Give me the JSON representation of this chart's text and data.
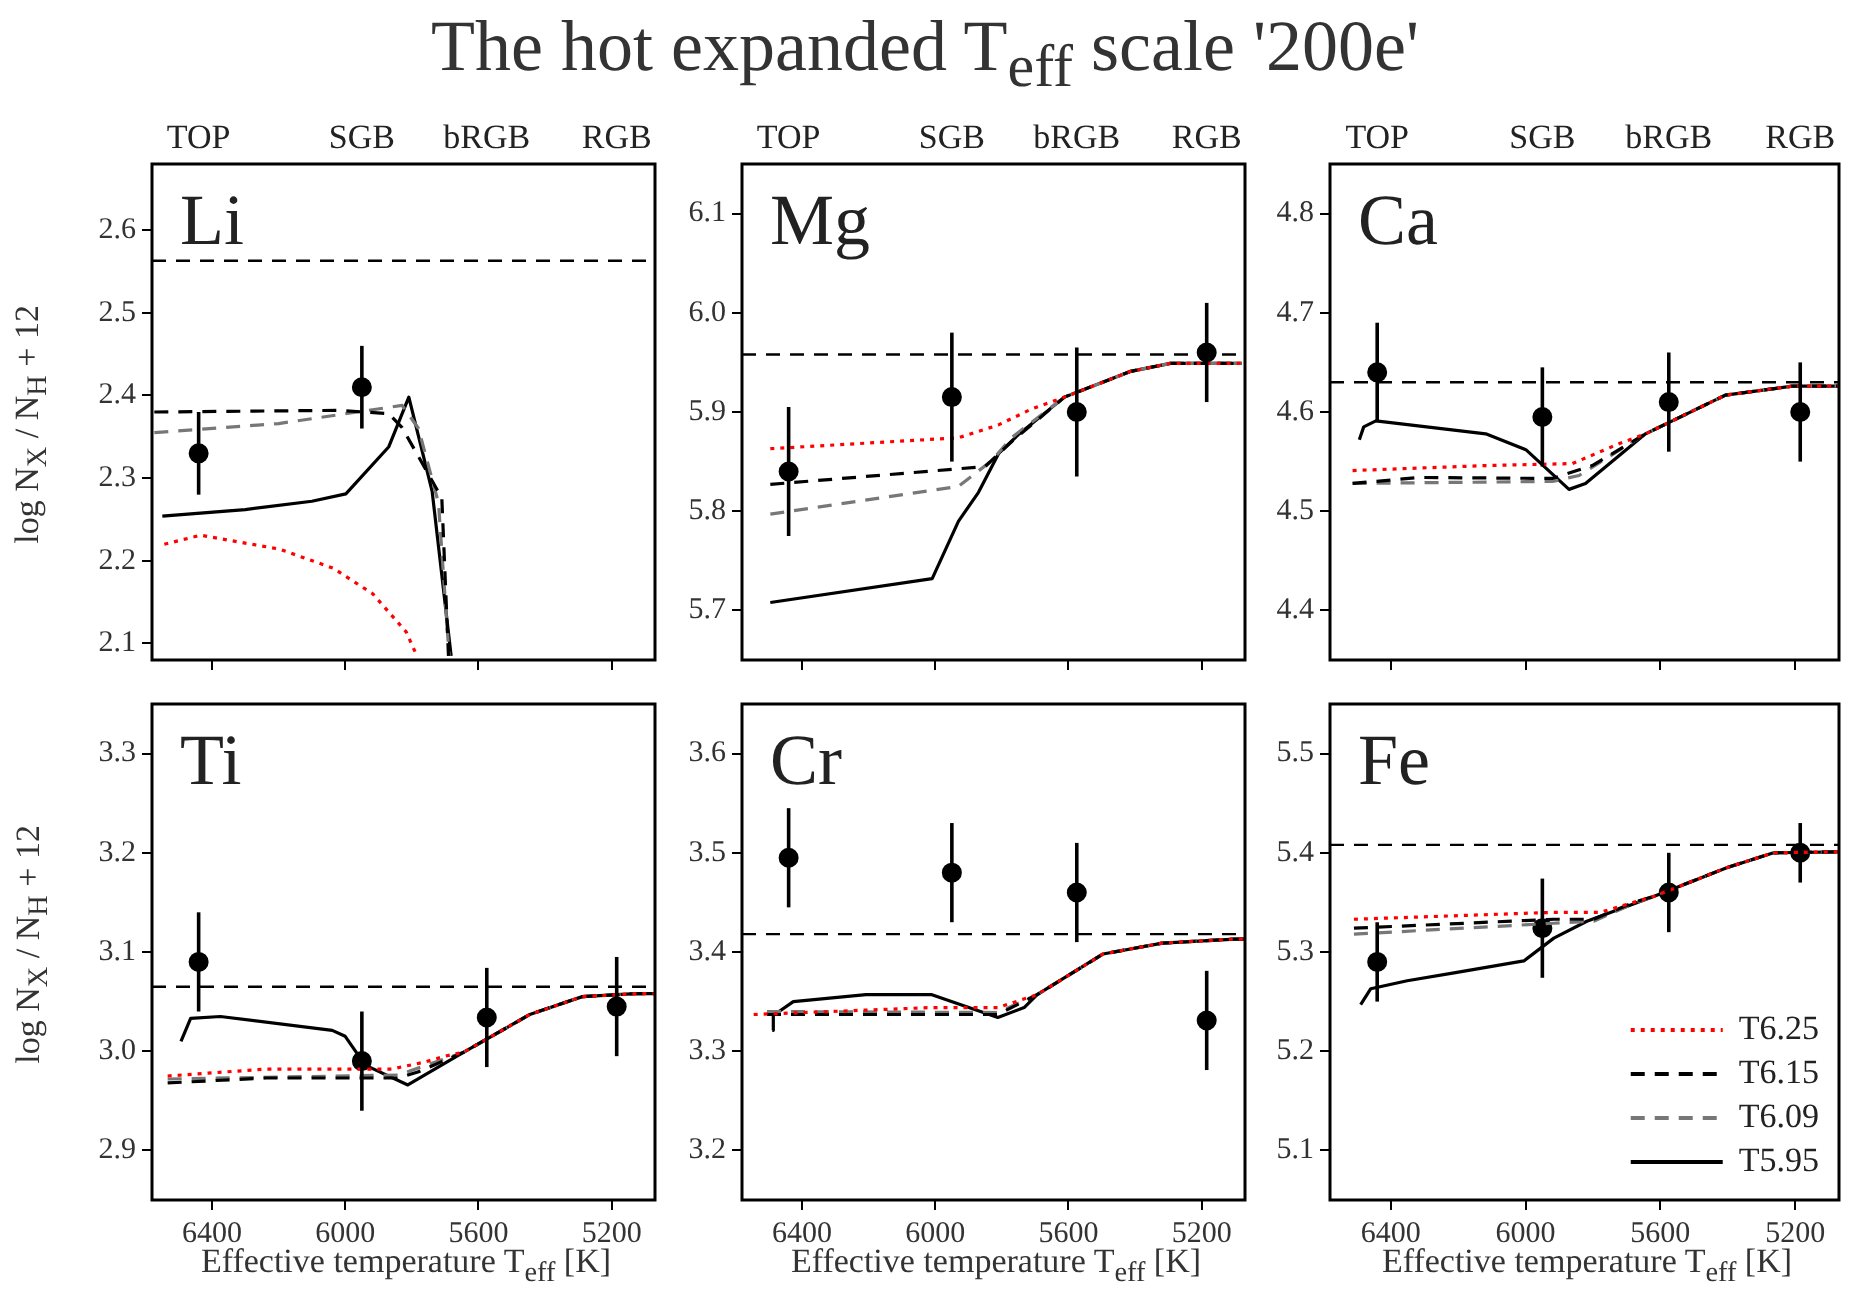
{
  "chart_data": [
    {
      "type": "line",
      "title": "The hot expanded T$_{eff}$ scale '200e'",
      "annotations": [
        "Li",
        "TOP",
        "SGB",
        "bRGB",
        "RGB"
      ],
      "ylabel": "log N$_{X}$ / N$_{H}$ + 12",
      "xlim": [
        6580,
        5070
      ],
      "xticks": [
        6400,
        6000,
        5600,
        5200
      ],
      "tick_labels": "y",
      "ylim": [
        2.08,
        2.68
      ],
      "yticks": [
        2.1,
        2.2,
        2.3,
        2.4,
        2.5,
        2.6
      ],
      "ref_lines": [
        {
          "axis": "y",
          "value": 2.563,
          "color": "#000000",
          "line_style": "dashed"
        }
      ],
      "series": [
        {
          "type": "line",
          "color": "#ff0000",
          "line_style": "dotted",
          "marker": "none",
          "x": [
            6543,
            6434,
            6196,
            6036,
            5917,
            5817,
            5787
          ],
          "values": [
            2.22,
            2.231,
            2.214,
            2.191,
            2.16,
            2.114,
            2.087
          ]
        },
        {
          "type": "line",
          "color": "#000000",
          "line_style": "dashed",
          "marker": "none",
          "x": [
            6573,
            6017,
            5869,
            5829,
            5710,
            5690
          ],
          "values": [
            2.38,
            2.382,
            2.378,
            2.361,
            2.276,
            2.085
          ]
        },
        {
          "type": "line",
          "color": "#777777",
          "line_style": "dashed",
          "marker": "none",
          "x": [
            6573,
            6200,
            5829,
            5780,
            5720,
            5688
          ],
          "values": [
            2.355,
            2.366,
            2.388,
            2.36,
            2.27,
            2.085
          ]
        },
        {
          "type": "line",
          "color": "#000000",
          "line_style": "solid",
          "marker": "none",
          "x": [
            6549,
            6300,
            6100,
            5998,
            5869,
            5809,
            5739,
            5682
          ],
          "values": [
            2.254,
            2.262,
            2.272,
            2.281,
            2.338,
            2.398,
            2.284,
            2.085
          ]
        },
        {
          "type": "scatter",
          "color": "#000000",
          "marker": "circle",
          "x": [
            6440,
            5950
          ],
          "values": [
            2.33,
            2.41
          ],
          "errors": [
            0.05,
            0.05
          ]
        }
      ]
    },
    {
      "type": "line",
      "annotations": [
        "Mg",
        "TOP",
        "SGB",
        "bRGB",
        "RGB"
      ],
      "xlim": [
        6580,
        5070
      ],
      "xticks": [
        6400,
        6000,
        5600,
        5200
      ],
      "tick_labels": "y",
      "ylim": [
        5.65,
        6.15
      ],
      "yticks": [
        5.7,
        5.8,
        5.9,
        {
          "value": 6,
          "label": "6.0"
        },
        6.1
      ],
      "ref_lines": [
        {
          "axis": "y",
          "value": 5.958,
          "color": "#000000",
          "line_style": "dashed"
        }
      ],
      "series": [
        {
          "type": "line",
          "color": "#ff0000",
          "line_style": "dotted",
          "marker": "none",
          "x": [
            6495,
            5930,
            5810,
            5711,
            5612,
            5413,
            5294,
            5080
          ],
          "values": [
            5.863,
            5.874,
            5.887,
            5.903,
            5.915,
            5.941,
            5.949,
            5.949
          ]
        },
        {
          "type": "line",
          "color": "#000000",
          "line_style": "dashed",
          "marker": "none",
          "x": [
            6495,
            5850,
            5771,
            5612,
            5413,
            5294,
            5080
          ],
          "values": [
            5.827,
            5.845,
            5.87,
            5.915,
            5.941,
            5.949,
            5.949
          ]
        },
        {
          "type": "line",
          "color": "#777777",
          "line_style": "dashed",
          "marker": "none",
          "x": [
            6495,
            5930,
            5830,
            5771,
            5612,
            5413,
            5294,
            5080
          ],
          "values": [
            5.797,
            5.825,
            5.851,
            5.874,
            5.915,
            5.941,
            5.949,
            5.949
          ]
        },
        {
          "type": "line",
          "color": "#000000",
          "line_style": "solid",
          "marker": "none",
          "x": [
            6495,
            6009,
            5930,
            5870,
            5810,
            5751,
            5612,
            5413,
            5294,
            5080
          ],
          "values": [
            5.708,
            5.732,
            5.79,
            5.819,
            5.858,
            5.877,
            5.915,
            5.941,
            5.949,
            5.949
          ]
        },
        {
          "type": "scatter",
          "color": "#000000",
          "marker": "circle",
          "x": [
            6440,
            5950,
            5575,
            5185
          ],
          "values": [
            5.84,
            5.915,
            5.9,
            5.96
          ],
          "errors": [
            0.065,
            0.065,
            0.065,
            0.05
          ]
        }
      ]
    },
    {
      "type": "line",
      "annotations": [
        "Ca",
        "TOP",
        "SGB",
        "bRGB",
        "RGB"
      ],
      "xlim": [
        6580,
        5070
      ],
      "xticks": [
        6400,
        6000,
        5600,
        5200
      ],
      "tick_labels": "y",
      "ylim": [
        4.35,
        4.85
      ],
      "yticks": [
        4.4,
        4.5,
        4.6,
        4.7,
        4.8
      ],
      "ref_lines": [
        {
          "axis": "y",
          "value": 4.63,
          "color": "#000000",
          "line_style": "dashed"
        }
      ],
      "series": [
        {
          "type": "line",
          "color": "#ff0000",
          "line_style": "dotted",
          "marker": "none",
          "x": [
            6513,
            6118,
            5861,
            5723,
            5644,
            5407,
            5209,
            5070
          ],
          "values": [
            4.541,
            4.546,
            4.548,
            4.568,
            4.578,
            4.617,
            4.626,
            4.626
          ]
        },
        {
          "type": "line",
          "color": "#000000",
          "line_style": "dashed",
          "marker": "none",
          "x": [
            6513,
            6316,
            5920,
            5802,
            5644,
            5407,
            5209,
            5070
          ],
          "values": [
            4.528,
            4.534,
            4.533,
            4.546,
            4.578,
            4.617,
            4.626,
            4.626
          ]
        },
        {
          "type": "line",
          "color": "#777777",
          "line_style": "dashed",
          "marker": "none",
          "x": [
            6513,
            5920,
            5841,
            5644,
            5407,
            5209,
            5070
          ],
          "values": [
            4.528,
            4.53,
            4.536,
            4.578,
            4.617,
            4.626,
            4.626
          ]
        },
        {
          "type": "line",
          "color": "#000000",
          "line_style": "solid",
          "marker": "none",
          "x": [
            6493,
            6480,
            6444,
            6118,
            5999,
            5871,
            5822,
            5644,
            5407,
            5209,
            5070
          ],
          "values": [
            4.572,
            4.585,
            4.591,
            4.578,
            4.562,
            4.522,
            4.528,
            4.578,
            4.617,
            4.626,
            4.626
          ]
        },
        {
          "type": "scatter",
          "color": "#000000",
          "marker": "circle",
          "x": [
            6440,
            5950,
            5575,
            5185
          ],
          "values": [
            4.64,
            4.595,
            4.61,
            4.6
          ],
          "errors": [
            0.05,
            0.05,
            0.05,
            0.05
          ]
        }
      ]
    },
    {
      "type": "line",
      "annotations": [
        "Ti"
      ],
      "ylabel": "log N$_{X}$ / N$_{H}$ + 12",
      "xlabel": "Effective temperature T$_{eff}$ [K]",
      "xlim": [
        6580,
        5070
      ],
      "xticks": [
        6400,
        6000,
        5600,
        5200
      ],
      "ylim": [
        2.85,
        3.35
      ],
      "yticks": [
        2.9,
        {
          "value": 3,
          "label": "3.0"
        },
        3.1,
        3.2,
        3.3
      ],
      "ref_lines": [
        {
          "axis": "y",
          "value": 3.065,
          "color": "#000000",
          "line_style": "dashed"
        }
      ],
      "series": [
        {
          "type": "line",
          "color": "#ff0000",
          "line_style": "dotted",
          "marker": "none",
          "x": [
            6533,
            6238,
            5861,
            5762,
            5700,
            5644,
            5446,
            5288,
            5130,
            5070
          ],
          "values": [
            2.975,
            2.982,
            2.982,
            2.989,
            2.995,
            2.999,
            3.037,
            3.055,
            3.058,
            3.058
          ]
        },
        {
          "type": "line",
          "color": "#000000",
          "line_style": "dashed",
          "marker": "none",
          "x": [
            6533,
            6238,
            5841,
            5782,
            5644,
            5446,
            5288,
            5130,
            5070
          ],
          "values": [
            2.968,
            2.973,
            2.973,
            2.979,
            2.999,
            3.037,
            3.055,
            3.058,
            3.058
          ]
        },
        {
          "type": "line",
          "color": "#777777",
          "line_style": "dashed",
          "marker": "none",
          "x": [
            6533,
            5841,
            5644,
            5446,
            5288,
            5130,
            5070
          ],
          "values": [
            2.972,
            2.976,
            2.999,
            3.037,
            3.055,
            3.058,
            3.058
          ]
        },
        {
          "type": "line",
          "color": "#000000",
          "line_style": "solid",
          "marker": "none",
          "x": [
            6493,
            6464,
            6375,
            6039,
            6000,
            5940,
            5812,
            5644,
            5446,
            5288,
            5130,
            5070
          ],
          "values": [
            3.01,
            3.033,
            3.035,
            3.021,
            3.015,
            2.986,
            2.966,
            2.999,
            3.037,
            3.055,
            3.058,
            3.058
          ]
        },
        {
          "type": "scatter",
          "color": "#000000",
          "marker": "circle",
          "x": [
            6440,
            5950,
            5575,
            5185
          ],
          "values": [
            3.09,
            2.99,
            3.034,
            3.045
          ],
          "errors": [
            0.05,
            0.05,
            0.05,
            0.05
          ]
        }
      ]
    },
    {
      "type": "line",
      "annotations": [
        "Cr"
      ],
      "xlabel": "Effective temperature T$_{eff}$ [K]",
      "xlim": [
        6580,
        5070
      ],
      "xticks": [
        6400,
        6000,
        5600,
        5200
      ],
      "ylim": [
        3.15,
        3.65
      ],
      "yticks": [
        3.2,
        3.3,
        3.4,
        3.5,
        3.6
      ],
      "ref_lines": [
        {
          "axis": "y",
          "value": 3.418,
          "color": "#000000",
          "line_style": "dashed"
        }
      ],
      "series": [
        {
          "type": "line",
          "color": "#ff0000",
          "line_style": "dotted",
          "marker": "none",
          "x": [
            6545,
            6010,
            5812,
            5694,
            5496,
            5318,
            5100,
            5070
          ],
          "values": [
            3.337,
            3.344,
            3.344,
            3.357,
            3.398,
            3.409,
            3.413,
            3.413
          ]
        },
        {
          "type": "line",
          "color": "#000000",
          "line_style": "dashed",
          "marker": "none",
          "x": [
            6505,
            5812,
            5694,
            5496,
            5318,
            5100,
            5070
          ],
          "values": [
            3.337,
            3.337,
            3.357,
            3.398,
            3.409,
            3.413,
            3.413
          ]
        },
        {
          "type": "line",
          "color": "#777777",
          "line_style": "dashed",
          "marker": "none",
          "x": [
            6505,
            5812,
            5694,
            5496,
            5318,
            5100,
            5070
          ],
          "values": [
            3.34,
            3.339,
            3.357,
            3.398,
            3.409,
            3.413,
            3.413
          ]
        },
        {
          "type": "line",
          "color": "#000000",
          "line_style": "solid",
          "marker": "none",
          "x": [
            6489,
            6486,
            6426,
            6208,
            6010,
            5812,
            5733,
            5694,
            5496,
            5318,
            5100,
            5070
          ],
          "values": [
            3.321,
            3.336,
            3.35,
            3.357,
            3.357,
            3.334,
            3.344,
            3.357,
            3.398,
            3.409,
            3.413,
            3.413
          ]
        },
        {
          "type": "scatter",
          "color": "#000000",
          "marker": "circle",
          "x": [
            6440,
            5950,
            5575,
            5185
          ],
          "values": [
            3.495,
            3.48,
            3.46,
            3.331
          ],
          "errors": [
            0.05,
            0.05,
            0.05,
            0.05
          ]
        }
      ]
    },
    {
      "type": "line",
      "annotations": [
        "Fe"
      ],
      "xlabel": "Effective temperature T$_{eff}$ [K]",
      "legend": "bottom right",
      "xlim": [
        6580,
        5070
      ],
      "xticks": [
        6400,
        6000,
        5600,
        5200
      ],
      "ylim": [
        5.05,
        5.55
      ],
      "yticks": [
        5.1,
        5.2,
        5.3,
        5.4,
        5.5
      ],
      "ref_lines": [
        {
          "axis": "y",
          "value": 5.408,
          "color": "#000000",
          "line_style": "dashed"
        }
      ],
      "series": [
        {
          "type": "line",
          "name": "T6.25",
          "color": "#ff0000",
          "line_style": "dotted",
          "marker": "none",
          "x": [
            6509,
            5916,
            5778,
            5679,
            5620,
            5403,
            5264,
            5070
          ],
          "values": [
            5.333,
            5.34,
            5.34,
            5.35,
            5.356,
            5.385,
            5.4,
            5.401
          ]
        },
        {
          "type": "line",
          "name": "T6.15",
          "color": "#000000",
          "line_style": "dashed",
          "marker": "none",
          "x": [
            6509,
            5916,
            5798,
            5679,
            5620,
            5403,
            5264,
            5070
          ],
          "values": [
            5.324,
            5.333,
            5.333,
            5.35,
            5.356,
            5.385,
            5.4,
            5.401
          ]
        },
        {
          "type": "line",
          "name": "T6.09",
          "color": "#777777",
          "line_style": "dashed",
          "marker": "none",
          "x": [
            6509,
            5916,
            5798,
            5679,
            5620,
            5403,
            5264,
            5070
          ],
          "values": [
            5.318,
            5.329,
            5.331,
            5.349,
            5.356,
            5.385,
            5.4,
            5.401
          ]
        },
        {
          "type": "line",
          "name": "T5.95",
          "color": "#000000",
          "line_style": "solid",
          "marker": "none",
          "x": [
            6489,
            6459,
            6351,
            6212,
            6005,
            5916,
            5818,
            5620,
            5403,
            5264,
            5070
          ],
          "values": [
            5.247,
            5.263,
            5.271,
            5.279,
            5.291,
            5.314,
            5.331,
            5.356,
            5.385,
            5.4,
            5.401
          ]
        },
        {
          "type": "scatter",
          "color": "#000000",
          "marker": "circle",
          "x": [
            6440,
            5950,
            5575,
            5185
          ],
          "values": [
            5.29,
            5.324,
            5.36,
            5.4
          ],
          "errors": [
            0.04,
            0.05,
            0.04,
            0.03
          ]
        }
      ]
    }
  ]
}
